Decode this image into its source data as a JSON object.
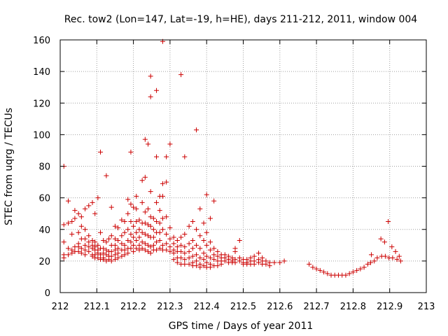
{
  "chart_data": {
    "type": "scatter",
    "title": "Rec. tow2 (Lon=147, Lat=-19, h=HE), days 211-212, 2011, window 004",
    "xlabel": "GPS time / Days of year 2011",
    "ylabel": "STEC from uqrg / TECUs",
    "xlim": [
      212,
      213
    ],
    "ylim": [
      0,
      160
    ],
    "xticks": [
      "212",
      "212.1",
      "212.2",
      "212.3",
      "212.4",
      "212.5",
      "212.6",
      "212.7",
      "212.8",
      "212.9",
      "213"
    ],
    "yticks": [
      "0",
      "20",
      "40",
      "60",
      "80",
      "100",
      "120",
      "140",
      "160"
    ],
    "grid": true,
    "marker": "+",
    "color": "#cc0000",
    "points": [
      [
        212.01,
        80
      ],
      [
        212.01,
        43
      ],
      [
        212.01,
        32
      ],
      [
        212.01,
        24
      ],
      [
        212.01,
        22
      ],
      [
        212.022,
        58
      ],
      [
        212.022,
        44
      ],
      [
        212.022,
        28
      ],
      [
        212.022,
        24
      ],
      [
        212.032,
        45
      ],
      [
        212.032,
        37
      ],
      [
        212.032,
        27
      ],
      [
        212.032,
        25
      ],
      [
        212.04,
        52
      ],
      [
        212.04,
        47
      ],
      [
        212.04,
        29
      ],
      [
        212.04,
        26
      ],
      [
        212.05,
        50
      ],
      [
        212.05,
        38
      ],
      [
        212.05,
        31
      ],
      [
        212.05,
        29
      ],
      [
        212.05,
        26
      ],
      [
        212.058,
        48
      ],
      [
        212.058,
        42
      ],
      [
        212.058,
        34
      ],
      [
        212.058,
        28
      ],
      [
        212.058,
        25
      ],
      [
        212.068,
        53
      ],
      [
        212.068,
        40
      ],
      [
        212.068,
        34
      ],
      [
        212.068,
        30
      ],
      [
        212.068,
        27
      ],
      [
        212.068,
        24
      ],
      [
        212.078,
        55
      ],
      [
        212.078,
        36
      ],
      [
        212.078,
        32
      ],
      [
        212.078,
        29
      ],
      [
        212.078,
        26
      ],
      [
        212.088,
        57
      ],
      [
        212.088,
        33
      ],
      [
        212.088,
        30
      ],
      [
        212.088,
        28
      ],
      [
        212.088,
        24
      ],
      [
        212.088,
        23
      ],
      [
        212.095,
        50
      ],
      [
        212.095,
        32
      ],
      [
        212.095,
        29
      ],
      [
        212.095,
        27
      ],
      [
        212.095,
        24
      ],
      [
        212.095,
        22
      ],
      [
        212.103,
        60
      ],
      [
        212.103,
        30
      ],
      [
        212.103,
        27
      ],
      [
        212.103,
        25
      ],
      [
        212.103,
        22
      ],
      [
        212.11,
        89
      ],
      [
        212.11,
        38
      ],
      [
        212.11,
        28
      ],
      [
        212.11,
        24
      ],
      [
        212.11,
        21
      ],
      [
        212.118,
        33
      ],
      [
        212.118,
        28
      ],
      [
        212.118,
        25
      ],
      [
        212.118,
        22
      ],
      [
        212.118,
        21
      ],
      [
        212.126,
        74
      ],
      [
        212.126,
        32
      ],
      [
        212.126,
        27
      ],
      [
        212.126,
        24
      ],
      [
        212.126,
        20
      ],
      [
        212.133,
        34
      ],
      [
        212.133,
        26
      ],
      [
        212.133,
        23
      ],
      [
        212.133,
        21
      ],
      [
        212.14,
        54
      ],
      [
        212.14,
        36
      ],
      [
        212.14,
        30
      ],
      [
        212.14,
        26
      ],
      [
        212.14,
        23
      ],
      [
        212.14,
        20
      ],
      [
        212.15,
        42
      ],
      [
        212.15,
        34
      ],
      [
        212.15,
        30
      ],
      [
        212.15,
        27
      ],
      [
        212.15,
        24
      ],
      [
        212.15,
        21
      ],
      [
        212.158,
        41
      ],
      [
        212.158,
        33
      ],
      [
        212.158,
        28
      ],
      [
        212.158,
        25
      ],
      [
        212.158,
        22
      ],
      [
        212.168,
        46
      ],
      [
        212.168,
        36
      ],
      [
        212.168,
        31
      ],
      [
        212.168,
        27
      ],
      [
        212.168,
        23
      ],
      [
        212.176,
        45
      ],
      [
        212.176,
        38
      ],
      [
        212.176,
        30
      ],
      [
        212.176,
        27
      ],
      [
        212.176,
        24
      ],
      [
        212.185,
        59
      ],
      [
        212.185,
        50
      ],
      [
        212.185,
        40
      ],
      [
        212.185,
        33
      ],
      [
        212.185,
        28
      ],
      [
        212.185,
        25
      ],
      [
        212.193,
        89
      ],
      [
        212.193,
        56
      ],
      [
        212.193,
        45
      ],
      [
        212.193,
        37
      ],
      [
        212.193,
        32
      ],
      [
        212.193,
        28
      ],
      [
        212.2,
        54
      ],
      [
        212.2,
        42
      ],
      [
        212.2,
        35
      ],
      [
        212.2,
        30
      ],
      [
        212.2,
        26
      ],
      [
        212.208,
        61
      ],
      [
        212.208,
        53
      ],
      [
        212.208,
        45
      ],
      [
        212.208,
        38
      ],
      [
        212.208,
        33
      ],
      [
        212.208,
        28
      ],
      [
        212.216,
        46
      ],
      [
        212.216,
        40
      ],
      [
        212.216,
        35
      ],
      [
        212.216,
        30
      ],
      [
        212.216,
        27
      ],
      [
        212.224,
        57
      ],
      [
        212.224,
        71
      ],
      [
        212.224,
        44
      ],
      [
        212.224,
        38
      ],
      [
        212.224,
        32
      ],
      [
        212.224,
        28
      ],
      [
        212.232,
        97
      ],
      [
        212.232,
        73
      ],
      [
        212.232,
        51
      ],
      [
        212.232,
        44
      ],
      [
        212.232,
        37
      ],
      [
        212.232,
        31
      ],
      [
        212.232,
        27
      ],
      [
        212.24,
        94
      ],
      [
        212.24,
        53
      ],
      [
        212.24,
        43
      ],
      [
        212.24,
        36
      ],
      [
        212.24,
        30
      ],
      [
        212.24,
        26
      ],
      [
        212.247,
        137
      ],
      [
        212.247,
        124
      ],
      [
        212.247,
        64
      ],
      [
        212.247,
        48
      ],
      [
        212.247,
        42
      ],
      [
        212.247,
        35
      ],
      [
        212.247,
        29
      ],
      [
        212.247,
        25
      ],
      [
        212.255,
        47
      ],
      [
        212.255,
        40
      ],
      [
        212.255,
        35
      ],
      [
        212.255,
        30
      ],
      [
        212.255,
        27
      ],
      [
        212.263,
        128
      ],
      [
        212.263,
        86
      ],
      [
        212.263,
        57
      ],
      [
        212.263,
        45
      ],
      [
        212.263,
        38
      ],
      [
        212.263,
        32
      ],
      [
        212.263,
        27
      ],
      [
        212.272,
        61
      ],
      [
        212.272,
        52
      ],
      [
        212.272,
        44
      ],
      [
        212.272,
        38
      ],
      [
        212.272,
        33
      ],
      [
        212.272,
        28
      ],
      [
        212.28,
        159
      ],
      [
        212.28,
        69
      ],
      [
        212.28,
        61
      ],
      [
        212.28,
        47
      ],
      [
        212.28,
        40
      ],
      [
        212.28,
        30
      ],
      [
        212.28,
        27
      ],
      [
        212.29,
        86
      ],
      [
        212.29,
        70
      ],
      [
        212.29,
        48
      ],
      [
        212.29,
        37
      ],
      [
        212.29,
        31
      ],
      [
        212.29,
        27
      ],
      [
        212.3,
        94
      ],
      [
        212.3,
        41
      ],
      [
        212.3,
        34
      ],
      [
        212.3,
        29
      ],
      [
        212.3,
        26
      ],
      [
        212.31,
        35
      ],
      [
        212.31,
        31
      ],
      [
        212.31,
        27
      ],
      [
        212.31,
        25
      ],
      [
        212.31,
        21
      ],
      [
        212.32,
        33
      ],
      [
        212.32,
        29
      ],
      [
        212.32,
        26
      ],
      [
        212.32,
        22
      ],
      [
        212.32,
        19
      ],
      [
        212.33,
        138
      ],
      [
        212.33,
        35
      ],
      [
        212.33,
        30
      ],
      [
        212.33,
        26
      ],
      [
        212.33,
        22
      ],
      [
        212.33,
        18
      ],
      [
        212.34,
        86
      ],
      [
        212.34,
        37
      ],
      [
        212.34,
        29
      ],
      [
        212.34,
        25
      ],
      [
        212.34,
        21
      ],
      [
        212.34,
        18
      ],
      [
        212.352,
        42
      ],
      [
        212.352,
        31
      ],
      [
        212.352,
        26
      ],
      [
        212.352,
        22
      ],
      [
        212.352,
        18
      ],
      [
        212.362,
        45
      ],
      [
        212.362,
        33
      ],
      [
        212.362,
        28
      ],
      [
        212.362,
        23
      ],
      [
        212.362,
        19
      ],
      [
        212.362,
        17
      ],
      [
        212.372,
        103
      ],
      [
        212.372,
        40
      ],
      [
        212.372,
        30
      ],
      [
        212.372,
        24
      ],
      [
        212.372,
        20
      ],
      [
        212.372,
        17
      ],
      [
        212.382,
        53
      ],
      [
        212.382,
        36
      ],
      [
        212.382,
        28
      ],
      [
        212.382,
        22
      ],
      [
        212.382,
        18
      ],
      [
        212.382,
        16
      ],
      [
        212.392,
        44
      ],
      [
        212.392,
        33
      ],
      [
        212.392,
        25
      ],
      [
        212.392,
        21
      ],
      [
        212.392,
        17
      ],
      [
        212.4,
        62
      ],
      [
        212.4,
        38
      ],
      [
        212.4,
        30
      ],
      [
        212.4,
        23
      ],
      [
        212.4,
        19
      ],
      [
        212.4,
        16
      ],
      [
        212.41,
        47
      ],
      [
        212.41,
        32
      ],
      [
        212.41,
        27
      ],
      [
        212.41,
        22
      ],
      [
        212.41,
        18
      ],
      [
        212.41,
        16
      ],
      [
        212.42,
        58
      ],
      [
        212.42,
        28
      ],
      [
        212.42,
        24
      ],
      [
        212.42,
        21
      ],
      [
        212.42,
        17
      ],
      [
        212.43,
        26
      ],
      [
        212.43,
        23
      ],
      [
        212.43,
        20
      ],
      [
        212.43,
        17
      ],
      [
        212.44,
        24
      ],
      [
        212.44,
        22
      ],
      [
        212.44,
        20
      ],
      [
        212.44,
        18
      ],
      [
        212.45,
        24
      ],
      [
        212.45,
        22
      ],
      [
        212.45,
        20
      ],
      [
        212.46,
        23
      ],
      [
        212.46,
        21
      ],
      [
        212.46,
        19
      ],
      [
        212.47,
        22
      ],
      [
        212.47,
        20
      ],
      [
        212.47,
        19
      ],
      [
        212.478,
        28
      ],
      [
        212.478,
        26
      ],
      [
        212.478,
        21
      ],
      [
        212.478,
        19
      ],
      [
        212.49,
        33
      ],
      [
        212.49,
        22
      ],
      [
        212.49,
        20
      ],
      [
        212.5,
        21
      ],
      [
        212.5,
        19
      ],
      [
        212.5,
        18
      ],
      [
        212.51,
        21
      ],
      [
        212.51,
        19
      ],
      [
        212.51,
        18
      ],
      [
        212.52,
        22
      ],
      [
        212.52,
        20
      ],
      [
        212.52,
        18
      ],
      [
        212.53,
        23
      ],
      [
        212.53,
        20
      ],
      [
        212.53,
        18
      ],
      [
        212.542,
        25
      ],
      [
        212.542,
        21
      ],
      [
        212.542,
        19
      ],
      [
        212.552,
        22
      ],
      [
        212.552,
        20
      ],
      [
        212.552,
        18
      ],
      [
        212.562,
        20
      ],
      [
        212.562,
        18
      ],
      [
        212.572,
        19
      ],
      [
        212.572,
        17
      ],
      [
        212.585,
        19
      ],
      [
        212.6,
        19
      ],
      [
        212.612,
        20
      ],
      [
        212.68,
        18
      ],
      [
        212.69,
        16
      ],
      [
        212.7,
        15
      ],
      [
        212.71,
        14
      ],
      [
        212.72,
        13
      ],
      [
        212.73,
        12
      ],
      [
        212.74,
        11
      ],
      [
        212.75,
        11
      ],
      [
        212.76,
        11
      ],
      [
        212.77,
        11
      ],
      [
        212.78,
        11
      ],
      [
        212.79,
        12
      ],
      [
        212.8,
        13
      ],
      [
        212.81,
        14
      ],
      [
        212.82,
        15
      ],
      [
        212.83,
        16
      ],
      [
        212.84,
        18
      ],
      [
        212.848,
        19
      ],
      [
        212.85,
        24
      ],
      [
        212.858,
        20
      ],
      [
        212.866,
        22
      ],
      [
        212.876,
        34
      ],
      [
        212.878,
        23
      ],
      [
        212.886,
        32
      ],
      [
        212.888,
        23
      ],
      [
        212.896,
        45
      ],
      [
        212.898,
        22
      ],
      [
        212.906,
        29
      ],
      [
        212.908,
        22
      ],
      [
        212.916,
        26
      ],
      [
        212.92,
        21
      ],
      [
        212.926,
        23
      ],
      [
        212.93,
        20
      ]
    ]
  }
}
